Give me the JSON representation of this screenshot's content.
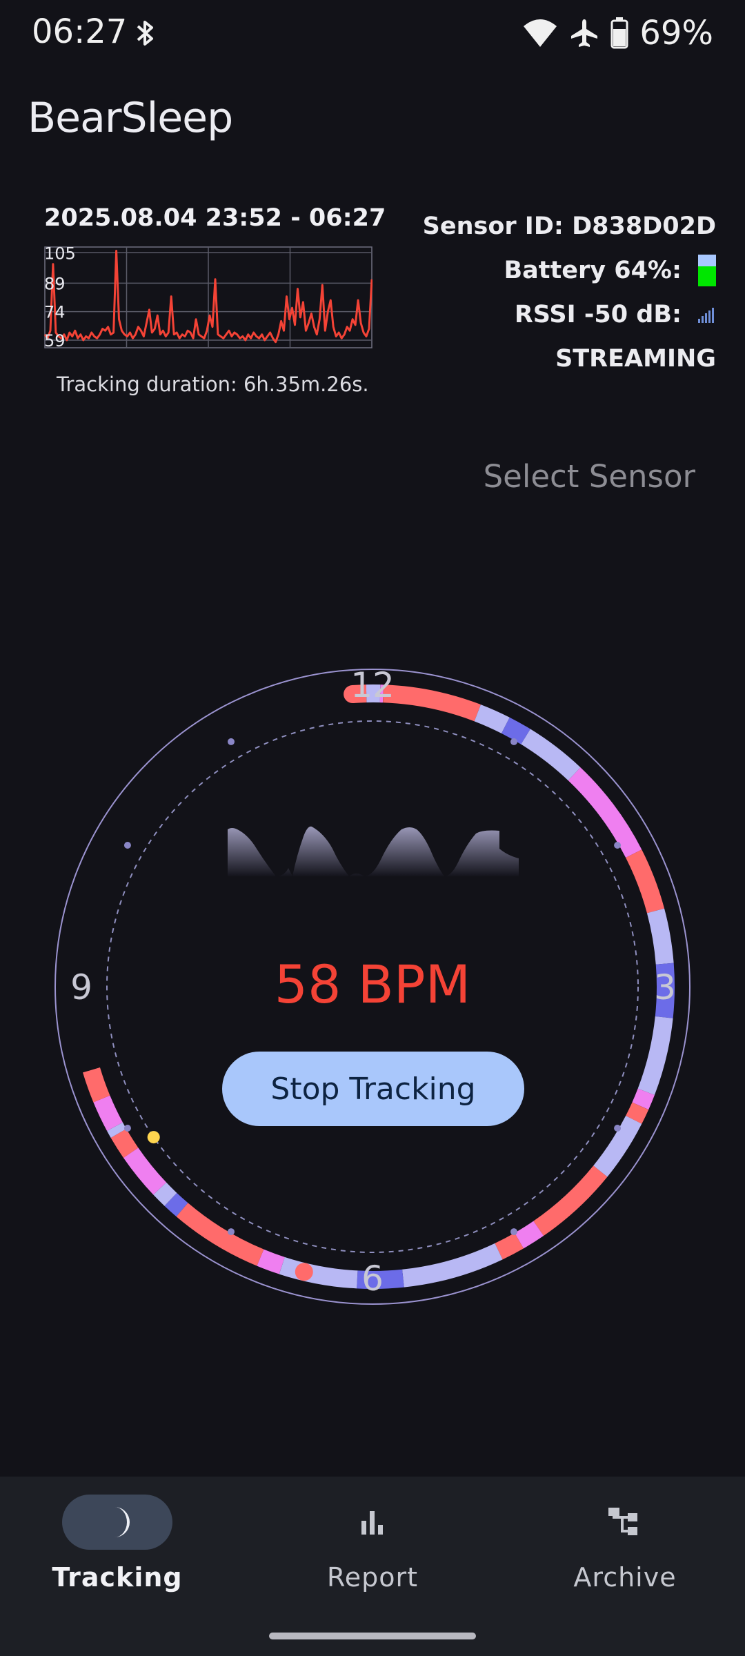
{
  "status_bar": {
    "time": "06:27",
    "battery_text": "69%"
  },
  "app": {
    "title": "BearSleep"
  },
  "chart_data": {
    "type": "line",
    "title": "2025.08.04 23:52 - 06:27",
    "y_ticks": [
      "105",
      "89",
      "74",
      "59"
    ],
    "ylim": [
      55,
      108
    ],
    "grid": true,
    "series": [
      {
        "color": "#f44336",
        "values": [
          62,
          60,
          64,
          99,
          63,
          61,
          60,
          62,
          59,
          63,
          61,
          64,
          60,
          62,
          59,
          61,
          60,
          63,
          61,
          60,
          62,
          65,
          64,
          66,
          62,
          63,
          106,
          70,
          64,
          62,
          61,
          63,
          60,
          62,
          66,
          64,
          61,
          68,
          75,
          63,
          65,
          72,
          62,
          64,
          61,
          63,
          82,
          62,
          63,
          60,
          62,
          61,
          64,
          63,
          60,
          70,
          62,
          61,
          60,
          64,
          72,
          66,
          91,
          62,
          61,
          60,
          62,
          64,
          61,
          63,
          62,
          60,
          61,
          59,
          62,
          60,
          63,
          61,
          60,
          62,
          59,
          61,
          63,
          60,
          58,
          62,
          69,
          64,
          82,
          70,
          76,
          67,
          86,
          71,
          79,
          64,
          68,
          73,
          66,
          62,
          70,
          88,
          64,
          74,
          80,
          66,
          61,
          63,
          60,
          62,
          66,
          64,
          70,
          67,
          80,
          68,
          63,
          61,
          65,
          91
        ]
      }
    ]
  },
  "tracking": {
    "duration": "Tracking duration: 6h.35m.26s.",
    "bpm": "58 BPM",
    "stop_label": "Stop Tracking"
  },
  "sensor": {
    "id_text": "Sensor ID: D838D02D",
    "battery_text": "Battery 64%:",
    "battery_level": 0.64,
    "rssi_text": "RSSI -50 dB:",
    "state": "STREAMING",
    "select_label": "Select Sensor"
  },
  "dial": {
    "labels": {
      "twelve": "12",
      "three": "3",
      "six": "6",
      "nine": "9"
    },
    "colors": {
      "awake": "#ff6b6b",
      "rem": "#ef7ff0",
      "light": "#b8b8f4",
      "deep": "#6c6ce8"
    },
    "sleep_start_hour": 11.87,
    "sleep_end_hour": 6.45,
    "segments": [
      {
        "stage": "awake",
        "start": 11.87,
        "end": 11.96
      },
      {
        "stage": "light",
        "start": 11.96,
        "end": 12.05
      },
      {
        "stage": "rem",
        "start": 12.05,
        "end": 12.07
      },
      {
        "stage": "awake",
        "start": 12.07,
        "end": 12.7
      },
      {
        "stage": "light",
        "start": 12.7,
        "end": 12.9
      },
      {
        "stage": "deep",
        "start": 12.9,
        "end": 13.05
      },
      {
        "stage": "light",
        "start": 13.05,
        "end": 13.45
      },
      {
        "stage": "rem",
        "start": 13.45,
        "end": 14.1
      },
      {
        "stage": "awake",
        "start": 14.1,
        "end": 14.5
      },
      {
        "stage": "light",
        "start": 14.5,
        "end": 14.85
      },
      {
        "stage": "deep",
        "start": 14.85,
        "end": 15.2
      },
      {
        "stage": "light",
        "start": 15.2,
        "end": 15.7
      },
      {
        "stage": "rem",
        "start": 15.7,
        "end": 15.8
      },
      {
        "stage": "awake",
        "start": 15.8,
        "end": 15.9
      },
      {
        "stage": "light",
        "start": 15.9,
        "end": 16.3
      },
      {
        "stage": "awake",
        "start": 16.3,
        "end": 16.85
      },
      {
        "stage": "rem",
        "start": 16.85,
        "end": 17.0
      },
      {
        "stage": "awake",
        "start": 17.0,
        "end": 17.15
      },
      {
        "stage": "light",
        "start": 17.15,
        "end": 17.8
      },
      {
        "stage": "deep",
        "start": 17.8,
        "end": 18.1
      },
      {
        "stage": "light",
        "start": 18.1,
        "end": 18.6
      },
      {
        "stage": "rem",
        "start": 18.6,
        "end": 18.75
      },
      {
        "stage": "awake",
        "start": 18.75,
        "end": 19.35
      },
      {
        "stage": "deep",
        "start": 19.35,
        "end": 19.45
      },
      {
        "stage": "light",
        "start": 19.45,
        "end": 19.55
      },
      {
        "stage": "rem",
        "start": 19.55,
        "end": 19.85
      },
      {
        "stage": "awake",
        "start": 19.85,
        "end": 20.0
      },
      {
        "stage": "light",
        "start": 20.0,
        "end": 20.05
      },
      {
        "stage": "rem",
        "start": 20.05,
        "end": 20.25
      },
      {
        "stage": "awake",
        "start": 20.25,
        "end": 20.45
      }
    ],
    "current_marker_color": "#ffd54f"
  },
  "nav": {
    "items": [
      {
        "label": "Tracking"
      },
      {
        "label": "Report"
      },
      {
        "label": "Archive"
      }
    ]
  }
}
